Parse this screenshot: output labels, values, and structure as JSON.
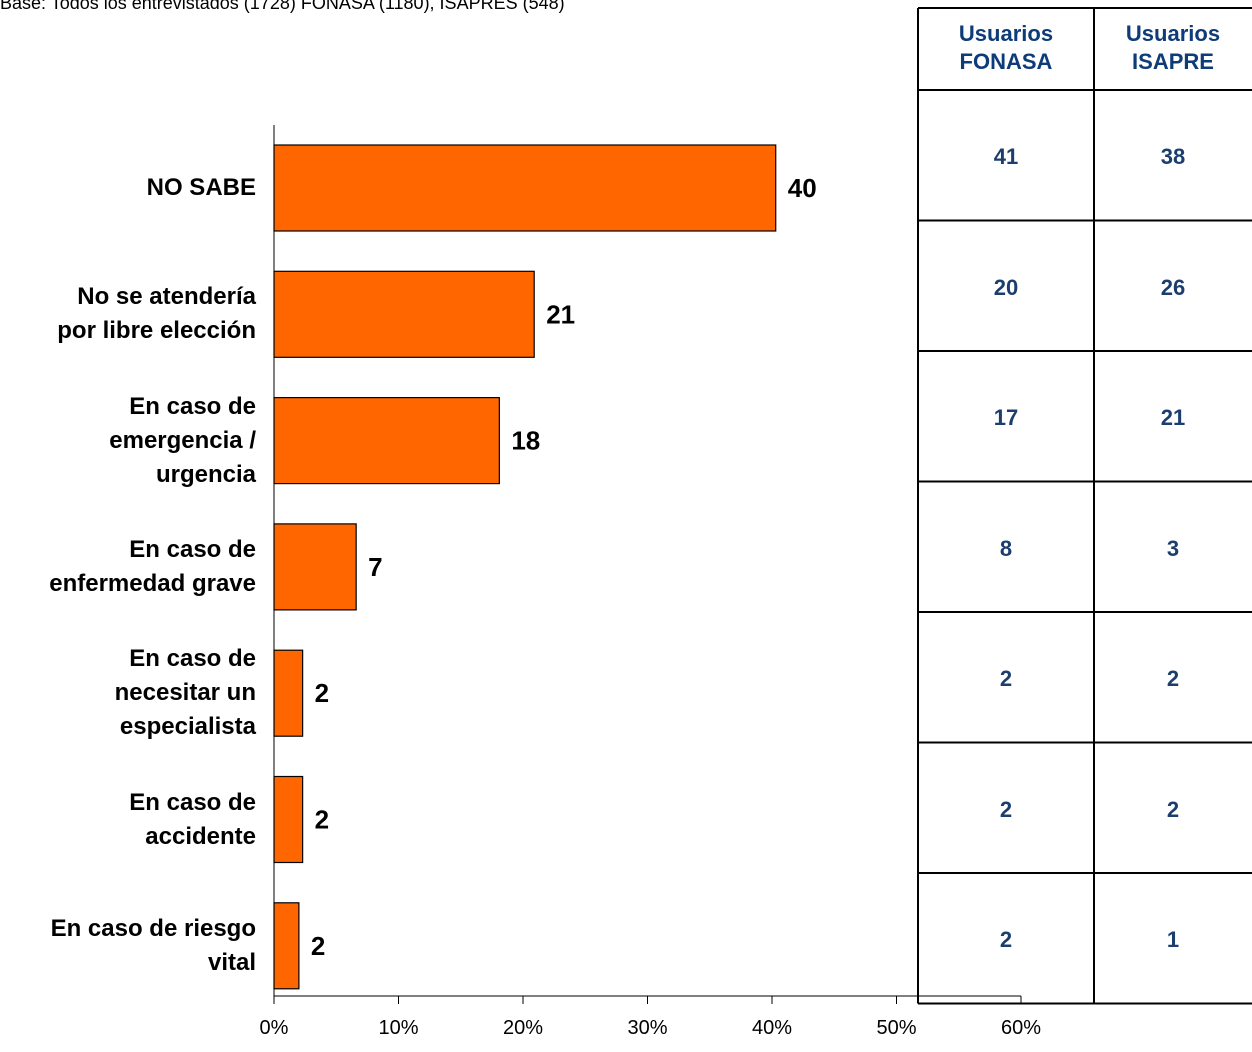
{
  "base_note": "Base: Todos los entrevistados (1728) FONASA (1180), ISAPRES (548)",
  "chart_data": {
    "type": "bar",
    "orientation": "horizontal",
    "categories": [
      "NO SABE",
      "No se atendería por libre elección",
      "En caso de emergencia / urgencia",
      "En caso de enfermedad grave",
      "En caso de necesitar un especialista",
      "En caso de accidente",
      "En caso de riesgo vital"
    ],
    "category_lines": [
      [
        "NO SABE"
      ],
      [
        "No se atendería",
        "por libre elección"
      ],
      [
        "En caso de",
        "emergencia /",
        "urgencia"
      ],
      [
        "En caso de",
        "enfermedad grave"
      ],
      [
        "En caso de",
        "necesitar un",
        "especialista"
      ],
      [
        "En caso de",
        "accidente"
      ],
      [
        "En caso de riesgo",
        "vital"
      ]
    ],
    "values": [
      40.3,
      20.9,
      18.1,
      6.6,
      2.3,
      2.3,
      2.0
    ],
    "data_labels": [
      "40",
      "21",
      "18",
      "7",
      "2",
      "2",
      "2"
    ],
    "xlim": [
      0,
      60
    ],
    "xticks": [
      "0%",
      "10%",
      "20%",
      "30%",
      "40%",
      "50%",
      "60%"
    ],
    "bar_color": "#ff6600",
    "grid": false
  },
  "table": {
    "headers": [
      [
        "Usuarios",
        "FONASA"
      ],
      [
        "Usuarios",
        "ISAPRE"
      ]
    ],
    "rows": [
      [
        "41",
        "38"
      ],
      [
        "20",
        "26"
      ],
      [
        "17",
        "21"
      ],
      [
        "8",
        "3"
      ],
      [
        "2",
        "2"
      ],
      [
        "2",
        "2"
      ],
      [
        "2",
        "1"
      ]
    ],
    "text_color": "#1b3e6e"
  }
}
